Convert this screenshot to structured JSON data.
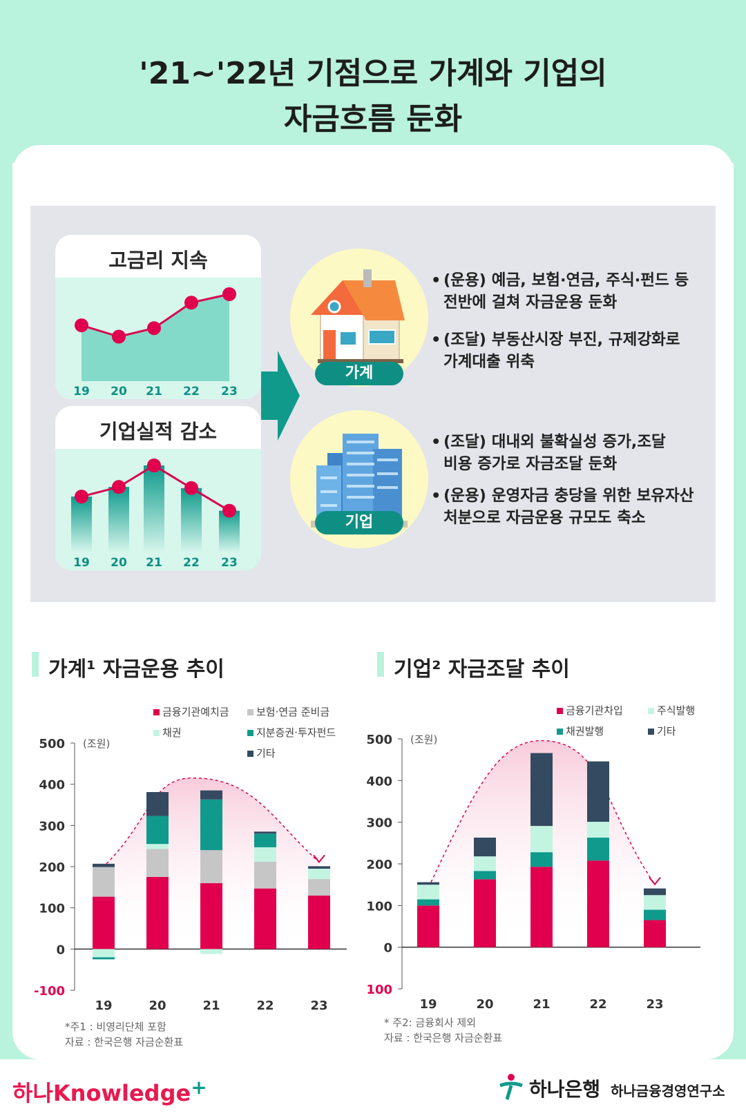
{
  "title": {
    "line1": "'21~'22년 기점으로 가계와 기업의",
    "line2": "자금흐름 둔화"
  },
  "summary": {
    "card1": {
      "title": "고금리 지속",
      "years": [
        "19",
        "20",
        "21",
        "22",
        "23"
      ],
      "trend": [
        0.45,
        0.25,
        0.4,
        0.85,
        1.0
      ]
    },
    "card2": {
      "title": "기업실적 감소",
      "years": [
        "19",
        "20",
        "21",
        "22",
        "23"
      ],
      "trend": [
        0.45,
        0.62,
        1.0,
        0.6,
        0.2
      ]
    },
    "household": {
      "label": "가계",
      "bullet1": {
        "line1": "(운용) 예금, 보험·연금, 주식·펀드 등",
        "line2": "전반에 걸쳐 자금운용 둔화"
      },
      "bullet2": {
        "line1": "(조달) 부동산시장 부진, 규제강화로",
        "line2": "가계대출 위축"
      }
    },
    "corporate": {
      "label": "기업",
      "bullet1": {
        "line1": "(조달) 대내외 불확실성 증가,조달",
        "line2": "비용 증가로 자금조달 둔화"
      },
      "bullet2": {
        "line1": "(운용) 운영자금 충당을 위한 보유자산",
        "line2": "처분으로 자금운용 규모도 축소"
      }
    },
    "bullet_dot": "•"
  },
  "colors": {
    "red": "#e0004d",
    "gray": "#c6c6c6",
    "mint": "#c3f4e2",
    "teal": "#0f9a8c",
    "navy": "#344a60",
    "pill": "#0f8f84"
  },
  "chart_data": [
    {
      "type": "bar",
      "stacked": true,
      "title": "가계¹ 자금운용 추이",
      "unit": "(조원)",
      "categories": [
        "19",
        "20",
        "21",
        "22",
        "23"
      ],
      "ylim": [
        -100,
        500
      ],
      "yticks": [
        500,
        400,
        300,
        200,
        100,
        0,
        -100
      ],
      "series": [
        {
          "name": "금융기관예치금",
          "color": "#e0004d",
          "values": [
            127,
            175,
            160,
            147,
            130
          ]
        },
        {
          "name": "보험·연금 준비금",
          "color": "#c6c6c6",
          "values": [
            72,
            68,
            80,
            65,
            40
          ]
        },
        {
          "name": "채권",
          "color": "#c3f4e2",
          "values": [
            -20,
            12,
            -12,
            35,
            25
          ]
        },
        {
          "name": "지분증권·투자펀드",
          "color": "#0f9a8c",
          "values": [
            -5,
            68,
            123,
            33,
            0
          ]
        },
        {
          "name": "기타",
          "color": "#344a60",
          "values": [
            8,
            58,
            22,
            5,
            6
          ]
        }
      ],
      "notes": [
        "*주1 : 비영리단체 포함",
        "자료 : 한국은행 자금순환표"
      ]
    },
    {
      "type": "bar",
      "stacked": true,
      "title": "기업² 자금조달 추이",
      "unit": "(조원)",
      "categories": [
        "19",
        "20",
        "21",
        "22",
        "23"
      ],
      "ylim": [
        -100,
        500
      ],
      "yticks": [
        500,
        400,
        300,
        200,
        100,
        0,
        -100
      ],
      "series": [
        {
          "name": "금융기관차입",
          "color": "#e0004d",
          "values": [
            100,
            163,
            193,
            208,
            65
          ]
        },
        {
          "name": "채권발행",
          "color": "#0f9a8c",
          "values": [
            15,
            20,
            35,
            55,
            25
          ]
        },
        {
          "name": "주식발행",
          "color": "#c3f4e2",
          "values": [
            35,
            35,
            63,
            38,
            35
          ]
        },
        {
          "name": "기타",
          "color": "#344a60",
          "values": [
            6,
            45,
            175,
            145,
            16
          ]
        }
      ],
      "notes": [
        "* 주2: 금융회사 제외",
        "자료 : 한국은행 자금순환표"
      ]
    }
  ],
  "footer": {
    "brand": "하나Knowledge",
    "plus": "+",
    "bank": "하나은행",
    "institute": "하나금융경영연구소"
  }
}
